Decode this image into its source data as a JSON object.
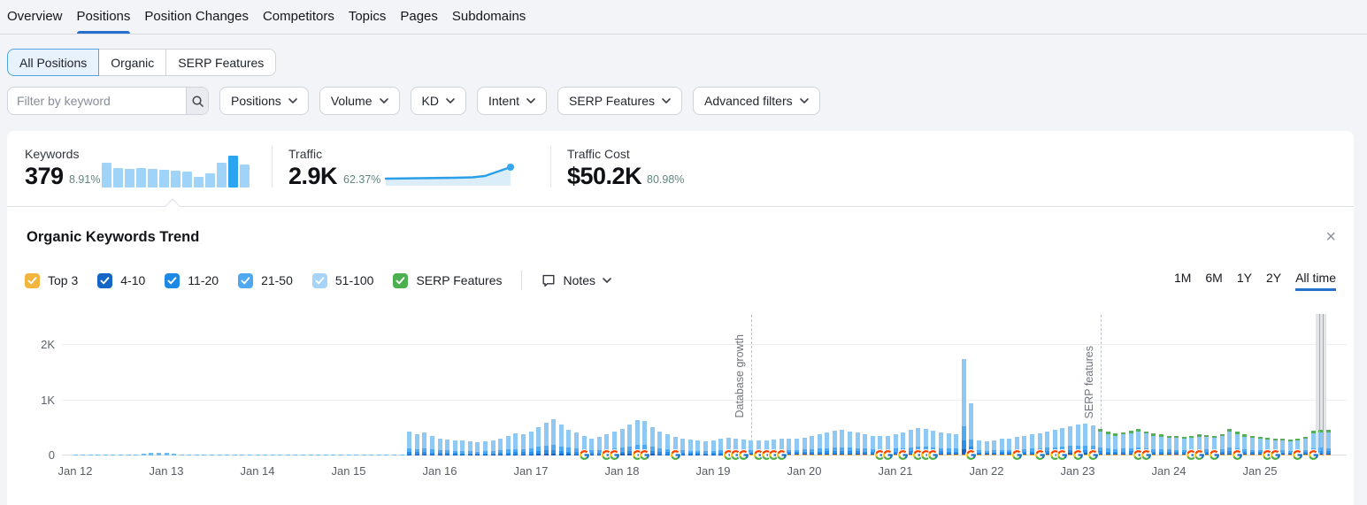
{
  "nav": {
    "items": [
      {
        "label": "Overview",
        "active": false
      },
      {
        "label": "Positions",
        "active": true
      },
      {
        "label": "Position Changes",
        "active": false
      },
      {
        "label": "Competitors",
        "active": false
      },
      {
        "label": "Topics",
        "active": false
      },
      {
        "label": "Pages",
        "active": false
      },
      {
        "label": "Subdomains",
        "active": false
      }
    ]
  },
  "position_tabs": {
    "items": [
      {
        "label": "All Positions",
        "selected": true
      },
      {
        "label": "Organic",
        "selected": false
      },
      {
        "label": "SERP Features",
        "selected": false
      }
    ]
  },
  "filters": {
    "keyword_input": {
      "placeholder": "Filter by keyword",
      "value": ""
    },
    "dropdowns": [
      "Positions",
      "Volume",
      "KD",
      "Intent",
      "SERP Features",
      "Advanced filters"
    ]
  },
  "stats": {
    "keywords": {
      "label": "Keywords",
      "value": "379",
      "delta": "8.91%",
      "mini_bars": [
        28,
        22,
        21,
        22,
        21,
        20,
        19,
        18,
        12,
        16,
        28,
        36,
        26
      ],
      "mini_highlight_index": 11
    },
    "traffic": {
      "label": "Traffic",
      "value": "2.9K",
      "delta": "62.37%",
      "spark_points": [
        [
          2,
          26
        ],
        [
          40,
          25.5
        ],
        [
          80,
          25
        ],
        [
          100,
          24.5
        ],
        [
          114,
          23
        ],
        [
          143,
          13
        ]
      ]
    },
    "traffic_cost": {
      "label": "Traffic Cost",
      "value": "$50.2K",
      "delta": "80.98%"
    }
  },
  "panel": {
    "title": "Organic Keywords Trend",
    "close_glyph": "×",
    "legend": [
      {
        "label": "Top 3",
        "color": "#F2B63F"
      },
      {
        "label": "4-10",
        "color": "#1565C6"
      },
      {
        "label": "11-20",
        "color": "#1E88E5"
      },
      {
        "label": "21-50",
        "color": "#4FA8F0"
      },
      {
        "label": "51-100",
        "color": "#A6D3F6"
      },
      {
        "label": "SERP Features",
        "color": "#4CAF50"
      }
    ],
    "notes": {
      "label": "Notes"
    },
    "ranges": [
      {
        "label": "1M",
        "selected": false
      },
      {
        "label": "6M",
        "selected": false
      },
      {
        "label": "1Y",
        "selected": false
      },
      {
        "label": "2Y",
        "selected": false
      },
      {
        "label": "All time",
        "selected": true
      }
    ]
  },
  "chart_data": {
    "type": "bar",
    "stacked": true,
    "x_unit": "month",
    "x_start": "2012-01",
    "x_labels": [
      "Jan 12",
      "Jan 13",
      "Jan 14",
      "Jan 15",
      "Jan 16",
      "Jan 17",
      "Jan 18",
      "Jan 19",
      "Jan 20",
      "Jan 21",
      "Jan 22",
      "Jan 23",
      "Jan 24",
      "Jan 25"
    ],
    "y_ticks": [
      "0",
      "1K",
      "2K"
    ],
    "ylim": [
      0,
      2560
    ],
    "totals": [
      8,
      8,
      8,
      8,
      8,
      8,
      8,
      8,
      8,
      30,
      45,
      55,
      45,
      35,
      8,
      8,
      8,
      8,
      8,
      8,
      8,
      8,
      8,
      8,
      8,
      8,
      8,
      8,
      8,
      8,
      8,
      8,
      8,
      8,
      8,
      8,
      8,
      8,
      8,
      8,
      8,
      8,
      8,
      8,
      430,
      385,
      415,
      350,
      310,
      295,
      280,
      265,
      250,
      240,
      250,
      265,
      300,
      350,
      400,
      380,
      430,
      520,
      600,
      650,
      560,
      470,
      410,
      350,
      300,
      330,
      390,
      430,
      480,
      560,
      640,
      620,
      520,
      440,
      380,
      340,
      310,
      290,
      270,
      260,
      280,
      300,
      320,
      310,
      290,
      280,
      270,
      280,
      290,
      300,
      310,
      300,
      320,
      350,
      380,
      420,
      450,
      470,
      440,
      410,
      380,
      360,
      350,
      360,
      380,
      420,
      460,
      500,
      480,
      450,
      420,
      400,
      390,
      1750,
      950,
      280,
      260,
      280,
      300,
      310,
      330,
      350,
      380,
      400,
      430,
      460,
      500,
      530,
      560,
      580,
      540,
      480,
      430,
      400,
      420,
      450,
      480,
      440,
      400,
      380,
      360,
      350,
      340,
      360,
      380,
      370,
      350,
      390,
      480,
      430,
      380,
      350,
      330,
      320,
      310,
      300,
      290,
      310,
      330,
      450,
      470,
      460
    ],
    "segments_order": [
      "top3",
      "4-10",
      "11-20",
      "21-50",
      "51-100",
      "serp"
    ],
    "stack_fractions": {
      "4-10": 0.055,
      "11-20": 0.095,
      "21-50": 0.15,
      "51-100": 0.7
    },
    "top3_from_index": 89,
    "top3_value": 14,
    "serp_from_index": 135,
    "serp_share": 0.1,
    "colors": {
      "top3": "#F2A93C",
      "4-10": "#1A5FC4",
      "11-20": "#2B8FE8",
      "21-50": "#4FA8F0",
      "51-100": "#8FC8F3",
      "serp": "#55AE58",
      "tiny": "#6FBBEE"
    },
    "annotations": [
      {
        "label": "Database growth",
        "month_index": 89
      },
      {
        "label": "SERP features",
        "month_index": 135
      }
    ],
    "google_update_month_indices": [
      67,
      70,
      71,
      74,
      75,
      79,
      86,
      87,
      88,
      90,
      91,
      92,
      93,
      106,
      107,
      109,
      111,
      112,
      113,
      118,
      124,
      127,
      129,
      130,
      132,
      134,
      140,
      141,
      147,
      148,
      150,
      153,
      157,
      158,
      161,
      163
    ],
    "hover": {
      "bar_index": 164,
      "band_width": 12,
      "line_offsets": [
        -1.5,
        2
      ]
    }
  }
}
